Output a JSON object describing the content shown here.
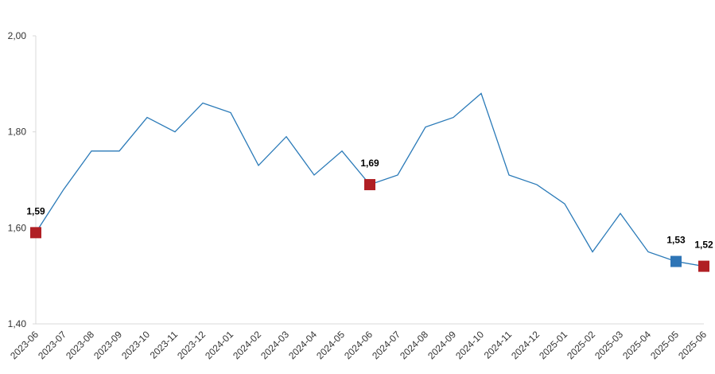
{
  "chart_data": {
    "type": "line",
    "categories": [
      "2023-06",
      "2023-07",
      "2023-08",
      "2023-09",
      "2023-10",
      "2023-11",
      "2023-12",
      "2024-01",
      "2024-02",
      "2024-03",
      "2024-04",
      "2024-05",
      "2024-06",
      "2024-07",
      "2024-08",
      "2024-09",
      "2024-10",
      "2024-11",
      "2024-12",
      "2025-01",
      "2025-02",
      "2025-03",
      "2025-04",
      "2025-05",
      "2025-06"
    ],
    "values": [
      1.59,
      1.68,
      1.76,
      1.76,
      1.83,
      1.8,
      1.86,
      1.84,
      1.73,
      1.79,
      1.71,
      1.76,
      1.69,
      1.71,
      1.81,
      1.83,
      1.88,
      1.71,
      1.69,
      1.65,
      1.55,
      1.63,
      1.55,
      1.53,
      1.52
    ],
    "value_labels": [
      "1,59",
      null,
      null,
      null,
      null,
      null,
      null,
      null,
      null,
      null,
      null,
      null,
      "1,69",
      null,
      null,
      null,
      null,
      null,
      null,
      null,
      null,
      null,
      null,
      "1,53",
      "1,52"
    ],
    "marker_colors": [
      "#b01f24",
      null,
      null,
      null,
      null,
      null,
      null,
      null,
      null,
      null,
      null,
      null,
      "#b01f24",
      null,
      null,
      null,
      null,
      null,
      null,
      null,
      null,
      null,
      null,
      "#2e75b6",
      "#b01f24"
    ],
    "color": "#2a7ab8",
    "ylim": [
      1.4,
      2.0
    ],
    "yticks": [
      {
        "value": 1.4,
        "label": "1,40"
      },
      {
        "value": 1.6,
        "label": "1,60"
      },
      {
        "value": 1.8,
        "label": "1,80"
      },
      {
        "value": 2.0,
        "label": "2,00"
      }
    ],
    "grid": false
  }
}
